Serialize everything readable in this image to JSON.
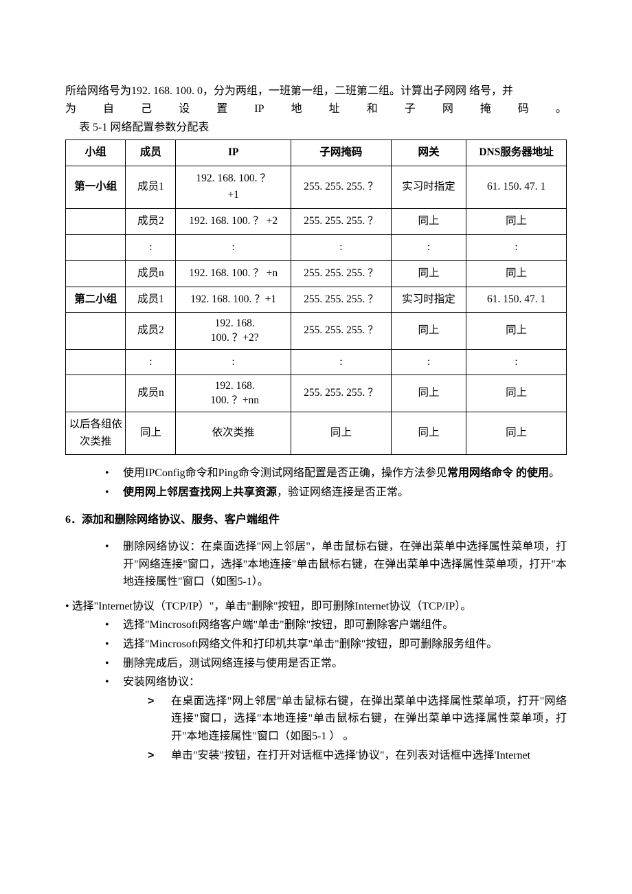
{
  "intro": {
    "line1": "所给网络号为192. 168. 100. 0，分为两组，一班第一组，二班第二组。计算出子网网 络号，并",
    "line2": "为自己设置IP地址和子网掩码。"
  },
  "table": {
    "caption": "表 5-1 网络配置参数分配表",
    "headers": [
      "小组",
      "成员",
      "IP",
      "子网掩码",
      "网关",
      "DNS服务器地址"
    ],
    "rows": [
      {
        "group": "第一小组",
        "mem": "成员1",
        "ip": "192. 168. 100. ？\n+1",
        "mask": "255. 255. 255. ？",
        "gw": "实习时指定",
        "dns": "61. 150. 47. 1",
        "groupBold": true,
        "ipMultiline": true
      },
      {
        "group": "",
        "mem": "成员2",
        "ip": "192. 168. 100. ？ +2",
        "mask": "255. 255. 255. ？",
        "gw": "同上",
        "dns": "同上"
      },
      {
        "group": "",
        "mem": ":",
        "ip": ":",
        "mask": ":",
        "gw": ":",
        "dns": ":"
      },
      {
        "group": "",
        "mem": "成员n",
        "ip": "192. 168. 100. ？ +n",
        "mask": "255. 255. 255. ？",
        "gw": "同上",
        "dns": "同上"
      },
      {
        "group": "第二小组",
        "mem": "成员1",
        "ip": "192. 168. 100. ？+1",
        "mask": "255. 255. 255. ？",
        "gw": "实习时指定",
        "dns": "61. 150. 47. 1",
        "groupBold": true
      },
      {
        "group": "",
        "mem": "成员2",
        "ip": "192. 168.\n100. ？+2?",
        "mask": "255. 255. 255. ？",
        "gw": "同上",
        "dns": "同上",
        "ipClip": true
      },
      {
        "group": "",
        "mem": ":",
        "ip": ":",
        "mask": ":",
        "gw": ":",
        "dns": ":"
      },
      {
        "group": "",
        "mem": "成员n",
        "ip": "192. 168.\n100. ？+nn",
        "mask": "255. 255. 255. ？",
        "gw": "同上",
        "dns": "同上",
        "ipClip": true
      },
      {
        "group": "以后各组依次类推",
        "mem": "同上",
        "ip": "依次类推",
        "mask": "同上",
        "gw": "同上",
        "dns": "同上"
      }
    ]
  },
  "preBullets": [
    {
      "pre": "使用IPConfig命令和Ping命令测试网络配置是否正确，操作方法参见",
      "bold": "常用网络命令 的使用",
      "post": "。"
    },
    {
      "pre": "",
      "bold": "使用网上邻居查找网上共享资源",
      "post": "，验证网络连接是否正常。"
    }
  ],
  "section6": {
    "title": "6．添加和删除网络协议、服务、客户端组件",
    "items": [
      "删除网络协议：在桌面选择\"网上邻居\"，单击鼠标右键，在弹出菜单中选择属性菜单项，打开\"网络连接\"窗口，选择\"本地连接\"单击鼠标右键，在弹出菜单中选择属性菜单项，打开\"本地连接属性\"窗口（如图5-1）。"
    ],
    "hang": "•   选择\"Internet协议（TCP/IP）\"，单击\"删除\"按钮，即可删除Internet协议（TCP/IP）。",
    "items2": [
      "选择\"Mincrosoft网络客户端\"单击\"删除\"按钮，即可删除客户端组件。",
      "选择\"Mincrosoft网络文件和打印机共享\"单击\"删除\"按钮，即可删除服务组件。",
      "删除完成后，测试网络连接与使用是否正常。",
      "安装网络协议："
    ],
    "sub": [
      "在桌面选择\"网上邻居\"单击鼠标右键，在弹出菜单中选择属性菜单项，打开\"网络连接\"窗口，选择\"本地连接\"单击鼠标右键，在弹出菜单中选择属性菜单项，打开\"本地连接属性\"窗口（如图5-1 ） 。",
      "单击\"安装\"按钮，在打开对话框中选择'协议\"，在列表对话框中选择'Internet"
    ]
  }
}
